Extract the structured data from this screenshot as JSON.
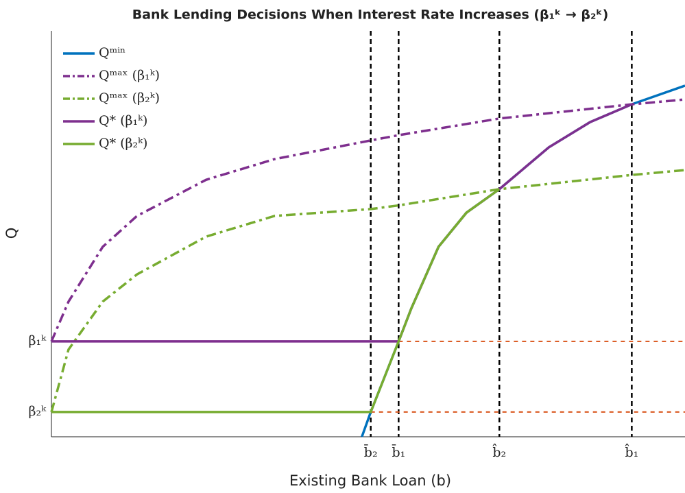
{
  "chart_data": {
    "type": "line",
    "title": "Bank Lending Decisions When Interest Rate Increases (β₁ᵏ → β₂ᵏ)",
    "xlabel": "Existing Bank Loan (b)",
    "ylabel": "Q",
    "xlim": [
      0,
      100
    ],
    "ylim": [
      0,
      100
    ],
    "xticks": [
      {
        "value": 50.4,
        "label": "b̄₂"
      },
      {
        "value": 54.8,
        "label": "b̄₁"
      },
      {
        "value": 70.7,
        "label": "b̂₂"
      },
      {
        "value": 91.6,
        "label": "b̂₁"
      }
    ],
    "yticks": [
      {
        "value": 6.1,
        "label": "β₂ᵏ"
      },
      {
        "value": 23.5,
        "label": "β₁ᵏ"
      }
    ],
    "xgrid": true,
    "xgrid_color": "#000000",
    "legend": "upper left",
    "series": [
      {
        "name": "Qᵐⁱⁿ",
        "color": "#0072bd",
        "style": "solid",
        "x": [
          49.0,
          50.4,
          54.8,
          56.8,
          61.1,
          65.5,
          70.7,
          78.5,
          85.0,
          91.6,
          100
        ],
        "values": [
          0,
          6.1,
          23.5,
          31.6,
          46.8,
          55.2,
          61.0,
          71.3,
          77.5,
          81.9,
          86.5
        ]
      },
      {
        "name": "Qᵐᵃˣ (β₁ᵏ)",
        "color": "#7e2f8e",
        "style": "dashdot",
        "x": [
          0,
          2.7,
          8.1,
          13.5,
          24.4,
          35.2,
          50.4,
          54.8,
          70.7,
          91.6,
          100
        ],
        "values": [
          23.5,
          33.3,
          46.8,
          54.4,
          63.3,
          68.4,
          73.0,
          74.3,
          78.4,
          81.9,
          83.1
        ]
      },
      {
        "name": "Qᵐᵃˣ (β₂ᵏ)",
        "color": "#77ac30",
        "style": "dashdot",
        "x": [
          0,
          2.7,
          8.1,
          13.5,
          24.4,
          35.2,
          50.4,
          54.8,
          70.7,
          91.6,
          100
        ],
        "values": [
          6.1,
          21.5,
          33.3,
          40.0,
          49.3,
          54.4,
          56.1,
          57.0,
          61.0,
          64.5,
          65.7
        ]
      },
      {
        "name": "Q* (β₁ᵏ)",
        "color": "#7e2f8e",
        "style": "solid",
        "x": [
          0,
          54.8,
          56.8,
          61.1,
          65.5,
          70.7,
          78.5,
          85.0,
          91.6
        ],
        "values": [
          23.5,
          23.5,
          31.6,
          46.8,
          55.2,
          61.0,
          71.3,
          77.5,
          81.9
        ]
      },
      {
        "name": "Q* (β₂ᵏ)",
        "color": "#77ac30",
        "style": "solid",
        "x": [
          0,
          50.4,
          54.8,
          56.8,
          61.1,
          65.5,
          70.7
        ],
        "values": [
          6.1,
          6.1,
          23.5,
          31.6,
          46.8,
          55.2,
          61.0
        ]
      }
    ],
    "reference_lines": [
      {
        "color": "#d95319",
        "x": [
          54.8,
          100
        ],
        "values": [
          23.5,
          23.5
        ]
      },
      {
        "color": "#d95319",
        "x": [
          50.4,
          100
        ],
        "values": [
          6.1,
          6.1
        ]
      }
    ]
  }
}
